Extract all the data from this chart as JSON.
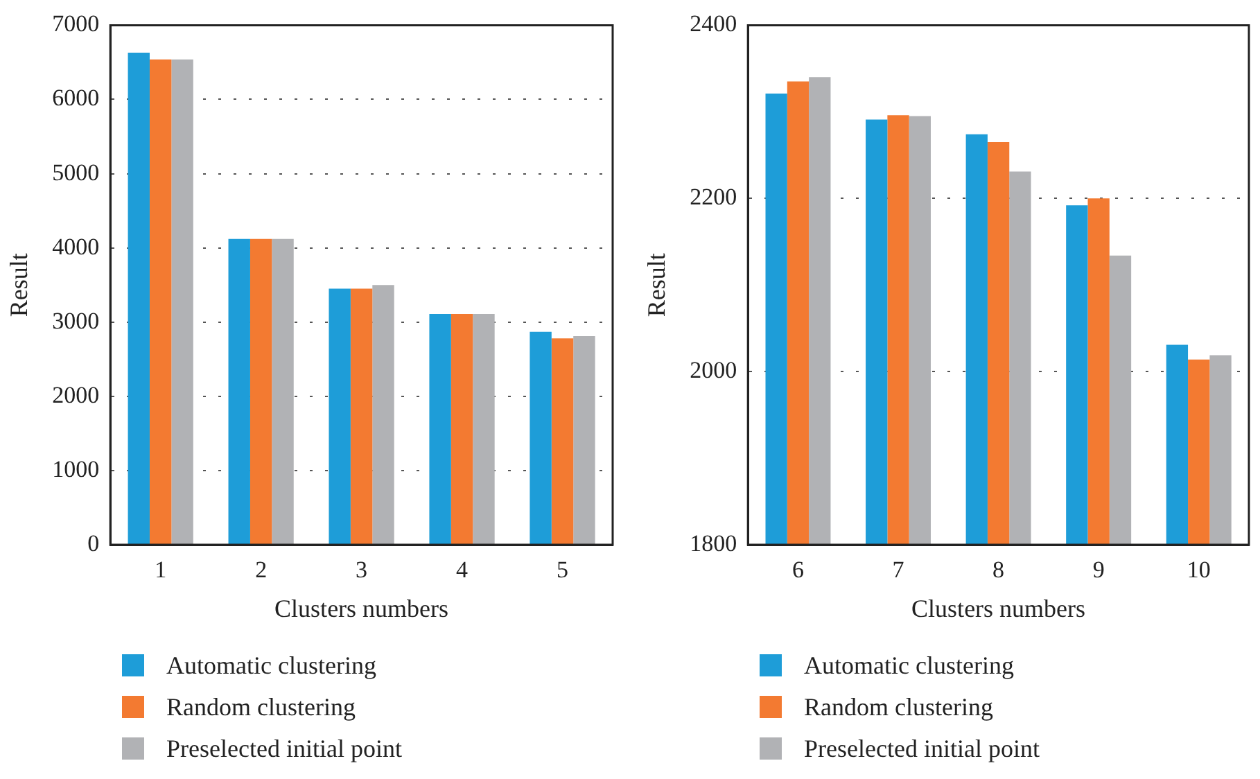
{
  "chart_data": [
    {
      "type": "bar",
      "xlabel": "Clusters numbers",
      "ylabel": "Result",
      "categories": [
        "1",
        "2",
        "3",
        "4",
        "5"
      ],
      "ylim": [
        0,
        7000
      ],
      "yticks": [
        0,
        1000,
        2000,
        3000,
        4000,
        5000,
        6000,
        7000
      ],
      "grid": "y",
      "legend": "bottom",
      "series": [
        {
          "name": "Automatic clustering",
          "color": "#1e9dd8",
          "values": [
            6630,
            4120,
            3450,
            3110,
            2870
          ]
        },
        {
          "name": "Random clustering",
          "color": "#f37a31",
          "values": [
            6540,
            4120,
            3450,
            3110,
            2780
          ]
        },
        {
          "name": "Preselected initial point",
          "color": "#b1b2b5",
          "values": [
            6540,
            4120,
            3500,
            3110,
            2810
          ]
        }
      ]
    },
    {
      "type": "bar",
      "xlabel": "Clusters numbers",
      "ylabel": "Result",
      "categories": [
        "6",
        "7",
        "8",
        "9",
        "10"
      ],
      "ylim": [
        1800,
        2400
      ],
      "yticks": [
        1800,
        2000,
        2200,
        2400
      ],
      "grid": "y",
      "legend": "bottom",
      "series": [
        {
          "name": "Automatic clustering",
          "color": "#1e9dd8",
          "values": [
            2321,
            2291,
            2274,
            2192,
            2031
          ]
        },
        {
          "name": "Random clustering",
          "color": "#f37a31",
          "values": [
            2335,
            2296,
            2265,
            2200,
            2014
          ]
        },
        {
          "name": "Preselected initial point",
          "color": "#b1b2b5",
          "values": [
            2340,
            2295,
            2231,
            2134,
            2019
          ]
        }
      ]
    }
  ]
}
